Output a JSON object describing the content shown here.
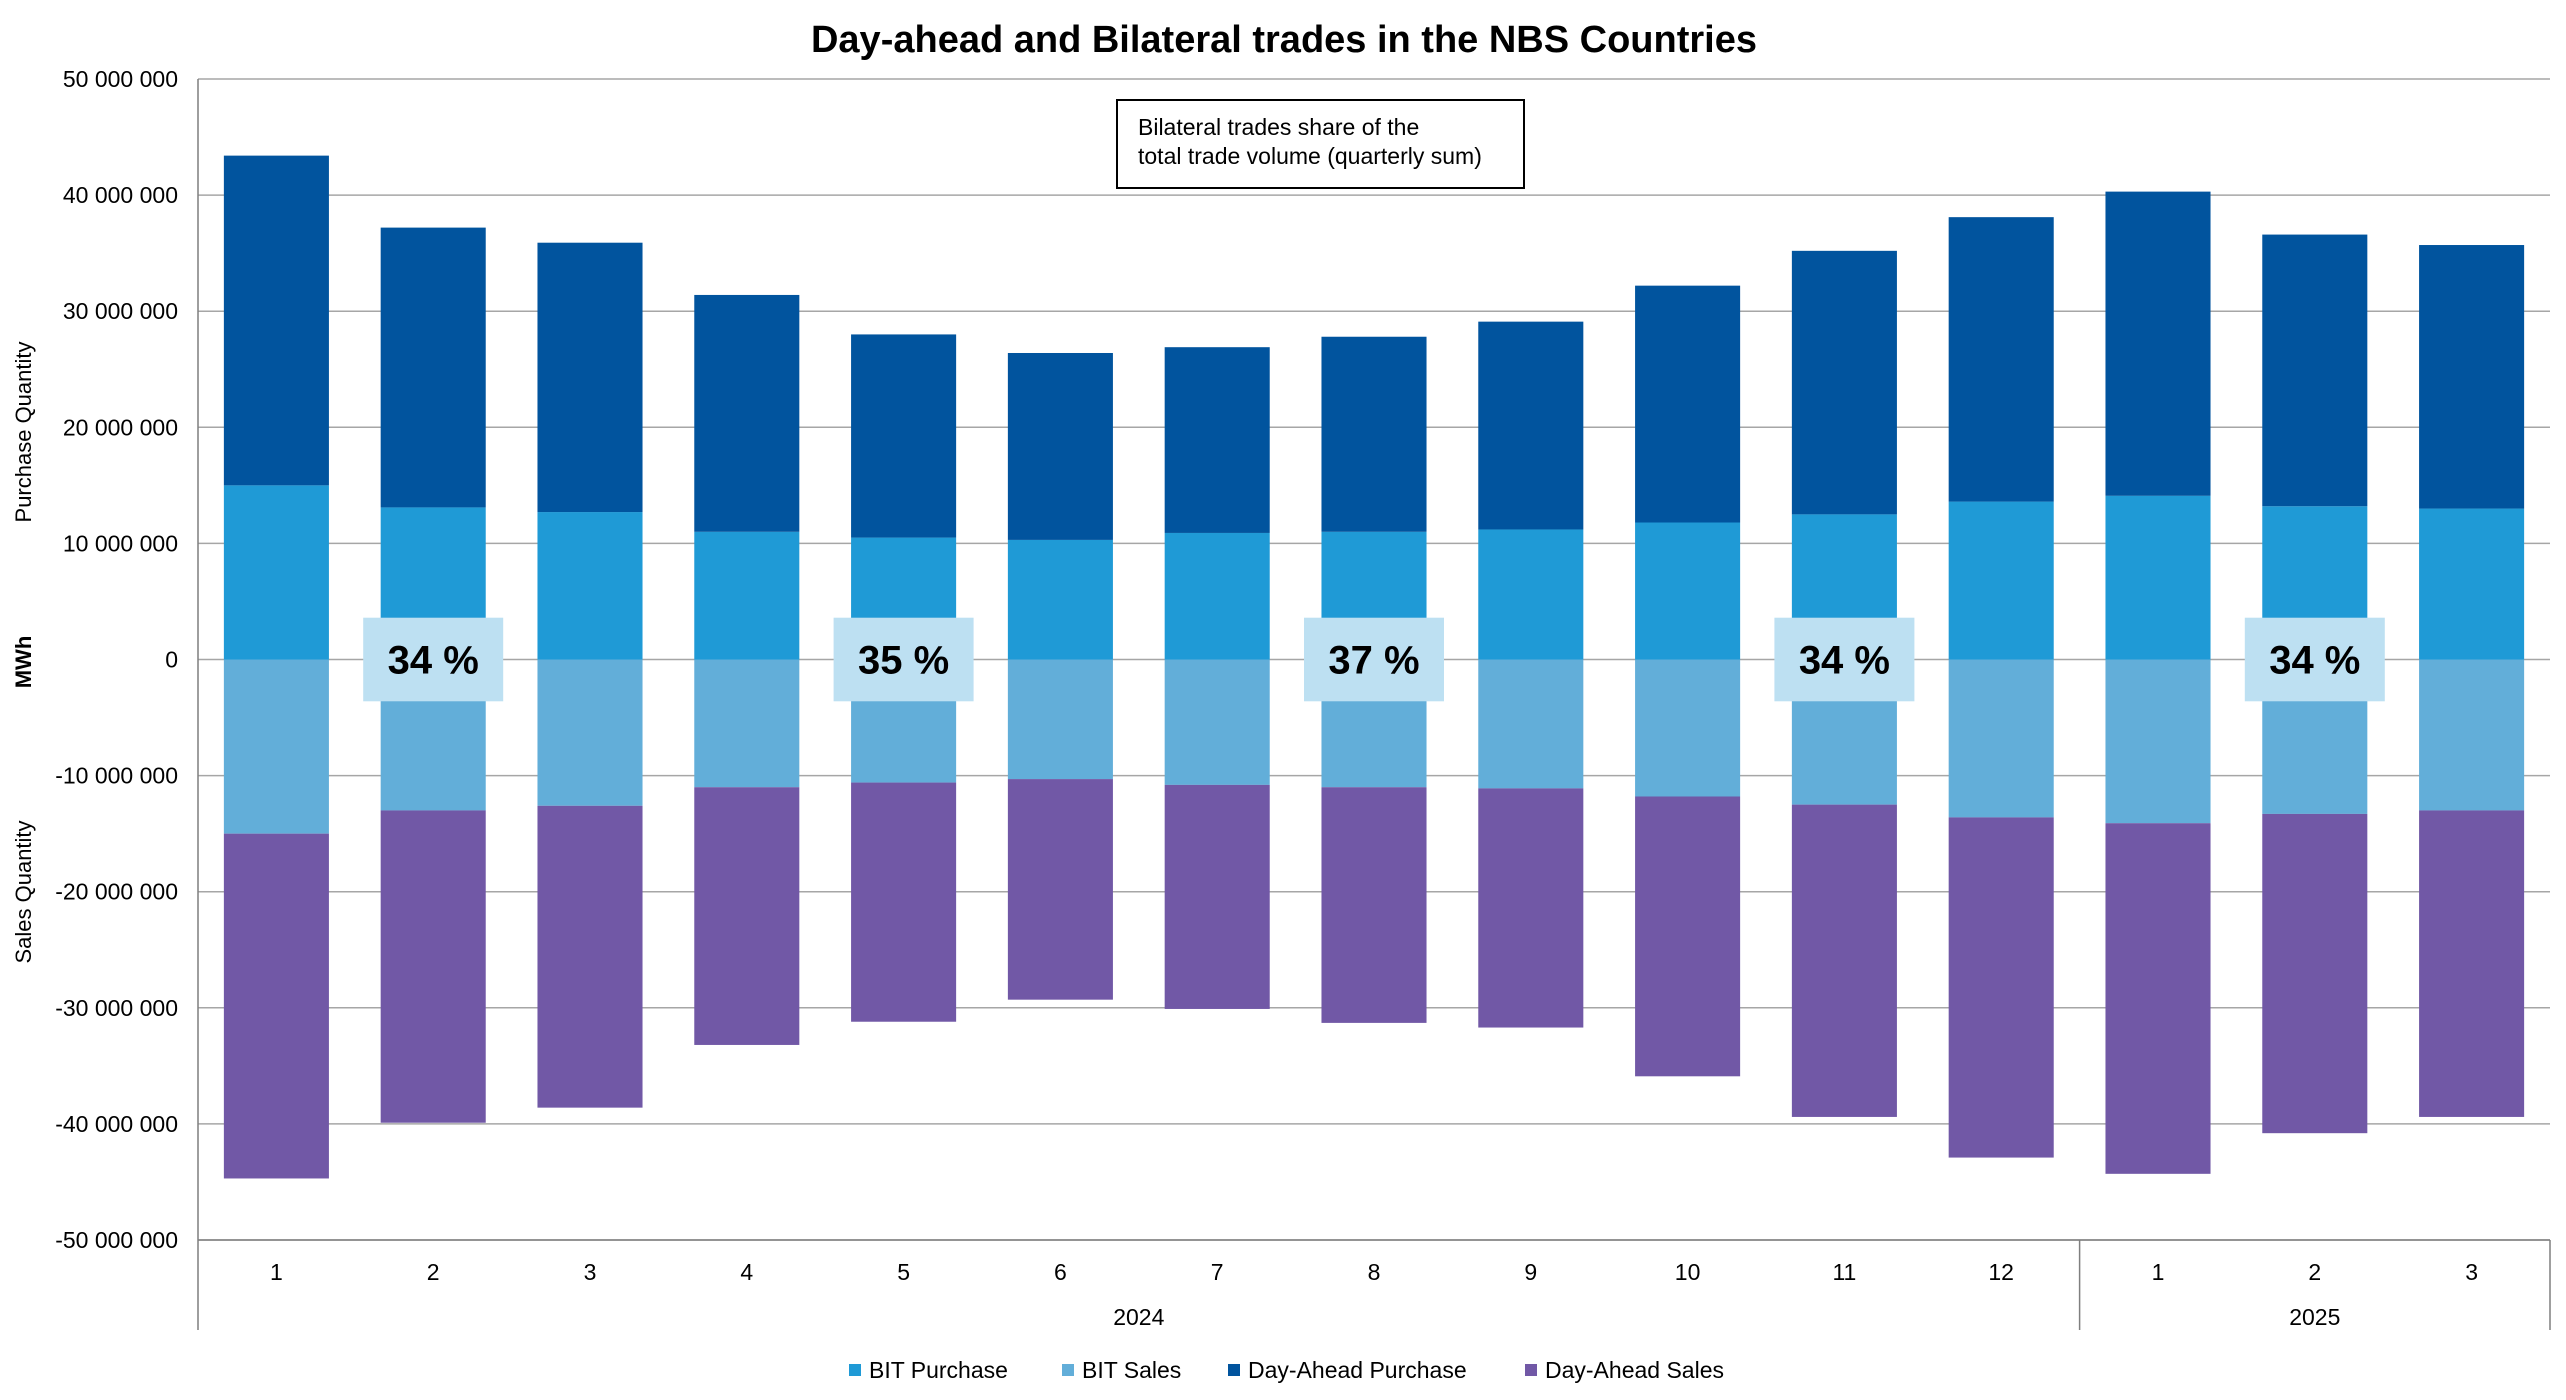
{
  "chart_data": {
    "type": "bar",
    "stacked": true,
    "title": "Day-ahead and Bilateral trades in the NBS Countries",
    "ylabel": "MWh",
    "ylabel_upper": "Purchase Quantity",
    "ylabel_lower": "Sales Quantity",
    "ylim": [
      -50000000,
      50000000
    ],
    "ytick_step": 10000000,
    "ytick_labels": [
      "50 000 000",
      "40 000 000",
      "30 000 000",
      "20 000 000",
      "10 000 000",
      "0",
      "-10 000 000",
      "-20 000 000",
      "-30 000 000",
      "-40 000 000",
      "-50 000 000"
    ],
    "grid": true,
    "legend_position": "bottom",
    "categories": [
      "1",
      "2",
      "3",
      "4",
      "5",
      "6",
      "7",
      "8",
      "9",
      "10",
      "11",
      "12",
      "1",
      "2",
      "3"
    ],
    "year_groups": [
      {
        "label": "2024",
        "count": 12
      },
      {
        "label": "2025",
        "count": 3
      }
    ],
    "series": [
      {
        "name": "BIT Purchase",
        "color": "#1f9ad6",
        "values": [
          15000000,
          13100000,
          12700000,
          11000000,
          10500000,
          10300000,
          10900000,
          11000000,
          11200000,
          11800000,
          12500000,
          13600000,
          14100000,
          13200000,
          13000000
        ]
      },
      {
        "name": "Day-Ahead Purchase",
        "color": "#01549e",
        "values": [
          28400000,
          24100000,
          23200000,
          20400000,
          17500000,
          16100000,
          16000000,
          16800000,
          17900000,
          20400000,
          22700000,
          24500000,
          26200000,
          23400000,
          22700000
        ]
      },
      {
        "name": "BIT Sales",
        "color": "#62aed9",
        "values": [
          -15000000,
          -13000000,
          -12600000,
          -11000000,
          -10600000,
          -10300000,
          -10800000,
          -11000000,
          -11100000,
          -11800000,
          -12500000,
          -13600000,
          -14100000,
          -13300000,
          -13000000
        ]
      },
      {
        "name": "Day-Ahead Sales",
        "color": "#7158a6",
        "values": [
          -29700000,
          -26900000,
          -26000000,
          -22200000,
          -20600000,
          -19000000,
          -19300000,
          -20300000,
          -20600000,
          -24100000,
          -26900000,
          -29300000,
          -30200000,
          -27500000,
          -26400000
        ]
      }
    ],
    "legend_order": [
      "BIT Purchase",
      "BIT Sales",
      "Day-Ahead Purchase",
      "Day-Ahead Sales"
    ],
    "annotation_box": "Bilateral trades share of the total trade volume (quarterly sum)",
    "share_labels": [
      {
        "category_index": 1,
        "label": "34 %"
      },
      {
        "category_index": 4,
        "label": "35 %"
      },
      {
        "category_index": 7,
        "label": "37 %"
      },
      {
        "category_index": 10,
        "label": "34 %"
      },
      {
        "category_index": 13,
        "label": "34 %"
      }
    ],
    "colors": {
      "axis": "#7f7f7f",
      "grid": "#a6a6a6",
      "share_label_bg": "#bde0f2"
    }
  }
}
